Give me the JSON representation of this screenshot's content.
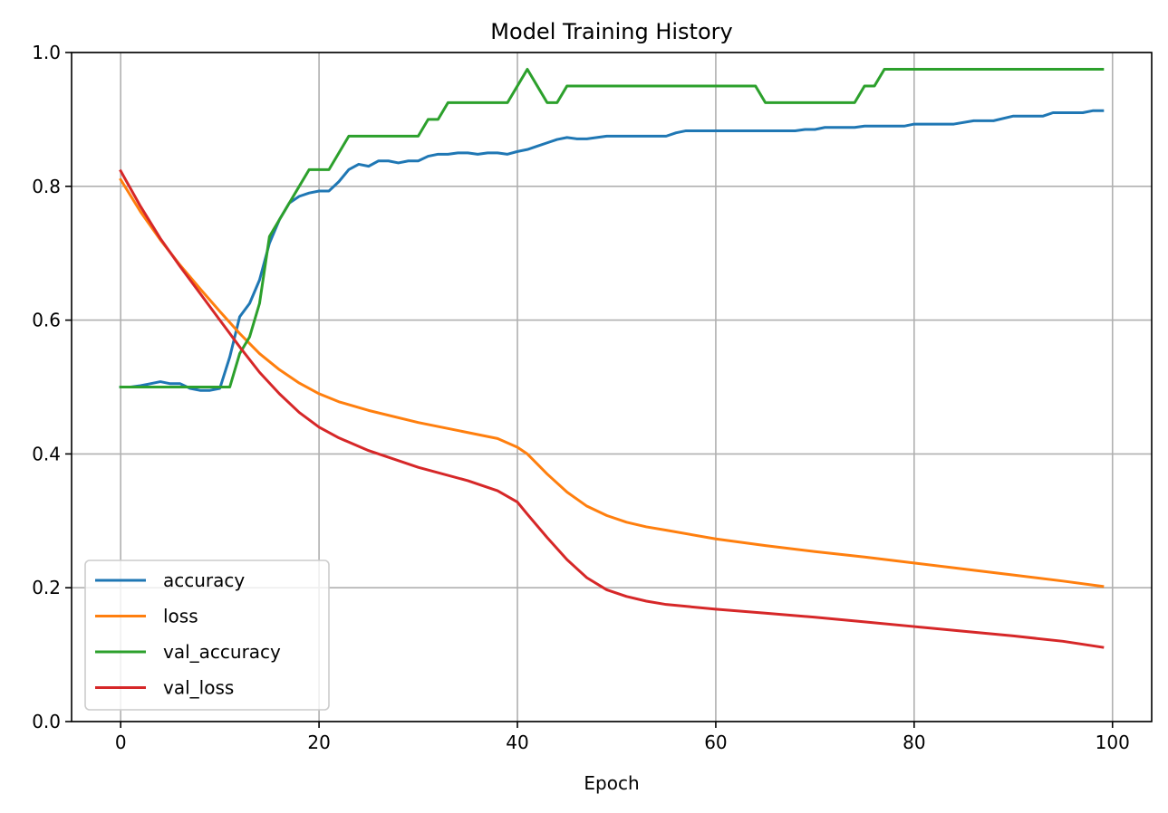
{
  "chart_data": {
    "type": "line",
    "title": "Model Training History",
    "xlabel": "Epoch",
    "ylabel": "",
    "xlim": [
      -4.95,
      103.95
    ],
    "ylim": [
      0.0,
      1.0
    ],
    "xticks": [
      0,
      20,
      40,
      60,
      80,
      100
    ],
    "yticks": [
      0.0,
      0.2,
      0.4,
      0.6,
      0.8,
      1.0
    ],
    "xtick_labels": [
      "0",
      "20",
      "40",
      "60",
      "80",
      "100"
    ],
    "ytick_labels": [
      "0.0",
      "0.2",
      "0.4",
      "0.6",
      "0.8",
      "1.0"
    ],
    "grid": true,
    "legend_position": "lower-left",
    "series": [
      {
        "name": "accuracy",
        "color": "#1f77b4",
        "points": [
          [
            0,
            0.5
          ],
          [
            1,
            0.5
          ],
          [
            2,
            0.502
          ],
          [
            3,
            0.505
          ],
          [
            4,
            0.508
          ],
          [
            5,
            0.505
          ],
          [
            6,
            0.505
          ],
          [
            7,
            0.498
          ],
          [
            8,
            0.495
          ],
          [
            9,
            0.495
          ],
          [
            10,
            0.498
          ],
          [
            11,
            0.545
          ],
          [
            12,
            0.605
          ],
          [
            13,
            0.625
          ],
          [
            14,
            0.66
          ],
          [
            15,
            0.715
          ],
          [
            16,
            0.75
          ],
          [
            17,
            0.775
          ],
          [
            18,
            0.785
          ],
          [
            19,
            0.79
          ],
          [
            20,
            0.793
          ],
          [
            21,
            0.793
          ],
          [
            22,
            0.807
          ],
          [
            23,
            0.825
          ],
          [
            24,
            0.833
          ],
          [
            25,
            0.83
          ],
          [
            26,
            0.838
          ],
          [
            27,
            0.838
          ],
          [
            28,
            0.835
          ],
          [
            29,
            0.838
          ],
          [
            30,
            0.838
          ],
          [
            31,
            0.845
          ],
          [
            32,
            0.848
          ],
          [
            33,
            0.848
          ],
          [
            34,
            0.85
          ],
          [
            35,
            0.85
          ],
          [
            36,
            0.848
          ],
          [
            37,
            0.85
          ],
          [
            38,
            0.85
          ],
          [
            39,
            0.848
          ],
          [
            40,
            0.852
          ],
          [
            41,
            0.855
          ],
          [
            42,
            0.86
          ],
          [
            43,
            0.865
          ],
          [
            44,
            0.87
          ],
          [
            45,
            0.873
          ],
          [
            46,
            0.871
          ],
          [
            47,
            0.871
          ],
          [
            48,
            0.873
          ],
          [
            49,
            0.875
          ],
          [
            50,
            0.875
          ],
          [
            55,
            0.875
          ],
          [
            56,
            0.88
          ],
          [
            57,
            0.883
          ],
          [
            68,
            0.883
          ],
          [
            69,
            0.885
          ],
          [
            70,
            0.885
          ],
          [
            71,
            0.888
          ],
          [
            74,
            0.888
          ],
          [
            75,
            0.89
          ],
          [
            79,
            0.89
          ],
          [
            80,
            0.893
          ],
          [
            84,
            0.893
          ],
          [
            86,
            0.898
          ],
          [
            88,
            0.898
          ],
          [
            90,
            0.905
          ],
          [
            93,
            0.905
          ],
          [
            94,
            0.91
          ],
          [
            97,
            0.91
          ],
          [
            98,
            0.913
          ],
          [
            99,
            0.913
          ]
        ]
      },
      {
        "name": "loss",
        "color": "#ff7f0e",
        "points": [
          [
            0,
            0.81
          ],
          [
            2,
            0.762
          ],
          [
            4,
            0.72
          ],
          [
            6,
            0.682
          ],
          [
            8,
            0.647
          ],
          [
            10,
            0.613
          ],
          [
            12,
            0.58
          ],
          [
            14,
            0.55
          ],
          [
            16,
            0.526
          ],
          [
            18,
            0.506
          ],
          [
            20,
            0.49
          ],
          [
            22,
            0.478
          ],
          [
            25,
            0.465
          ],
          [
            30,
            0.447
          ],
          [
            35,
            0.432
          ],
          [
            38,
            0.423
          ],
          [
            40,
            0.41
          ],
          [
            41,
            0.4
          ],
          [
            43,
            0.37
          ],
          [
            45,
            0.343
          ],
          [
            47,
            0.322
          ],
          [
            49,
            0.308
          ],
          [
            51,
            0.298
          ],
          [
            53,
            0.291
          ],
          [
            55,
            0.286
          ],
          [
            60,
            0.273
          ],
          [
            65,
            0.263
          ],
          [
            70,
            0.254
          ],
          [
            75,
            0.246
          ],
          [
            80,
            0.237
          ],
          [
            85,
            0.228
          ],
          [
            90,
            0.219
          ],
          [
            95,
            0.21
          ],
          [
            99,
            0.202
          ]
        ]
      },
      {
        "name": "val_accuracy",
        "color": "#2ca02c",
        "points": [
          [
            0,
            0.5
          ],
          [
            11,
            0.5
          ],
          [
            12,
            0.55
          ],
          [
            13,
            0.575
          ],
          [
            14,
            0.625
          ],
          [
            15,
            0.725
          ],
          [
            16,
            0.75
          ],
          [
            17,
            0.775
          ],
          [
            18,
            0.8
          ],
          [
            19,
            0.825
          ],
          [
            20,
            0.825
          ],
          [
            21,
            0.825
          ],
          [
            22,
            0.85
          ],
          [
            23,
            0.875
          ],
          [
            30,
            0.875
          ],
          [
            31,
            0.9
          ],
          [
            32,
            0.9
          ],
          [
            33,
            0.925
          ],
          [
            39,
            0.925
          ],
          [
            40,
            0.95
          ],
          [
            41,
            0.975
          ],
          [
            42,
            0.95
          ],
          [
            43,
            0.925
          ],
          [
            44,
            0.925
          ],
          [
            45,
            0.95
          ],
          [
            64,
            0.95
          ],
          [
            65,
            0.925
          ],
          [
            74,
            0.925
          ],
          [
            75,
            0.95
          ],
          [
            76,
            0.95
          ],
          [
            77,
            0.975
          ],
          [
            99,
            0.975
          ]
        ]
      },
      {
        "name": "val_loss",
        "color": "#d62728",
        "points": [
          [
            0,
            0.823
          ],
          [
            2,
            0.77
          ],
          [
            4,
            0.722
          ],
          [
            6,
            0.68
          ],
          [
            8,
            0.64
          ],
          [
            10,
            0.6
          ],
          [
            12,
            0.56
          ],
          [
            14,
            0.522
          ],
          [
            16,
            0.49
          ],
          [
            18,
            0.462
          ],
          [
            20,
            0.44
          ],
          [
            22,
            0.424
          ],
          [
            25,
            0.405
          ],
          [
            30,
            0.38
          ],
          [
            35,
            0.36
          ],
          [
            38,
            0.345
          ],
          [
            40,
            0.328
          ],
          [
            41,
            0.31
          ],
          [
            43,
            0.275
          ],
          [
            45,
            0.242
          ],
          [
            47,
            0.215
          ],
          [
            49,
            0.197
          ],
          [
            51,
            0.187
          ],
          [
            53,
            0.18
          ],
          [
            55,
            0.175
          ],
          [
            60,
            0.168
          ],
          [
            65,
            0.162
          ],
          [
            70,
            0.156
          ],
          [
            75,
            0.149
          ],
          [
            80,
            0.142
          ],
          [
            85,
            0.135
          ],
          [
            90,
            0.128
          ],
          [
            95,
            0.12
          ],
          [
            99,
            0.111
          ]
        ]
      }
    ]
  }
}
